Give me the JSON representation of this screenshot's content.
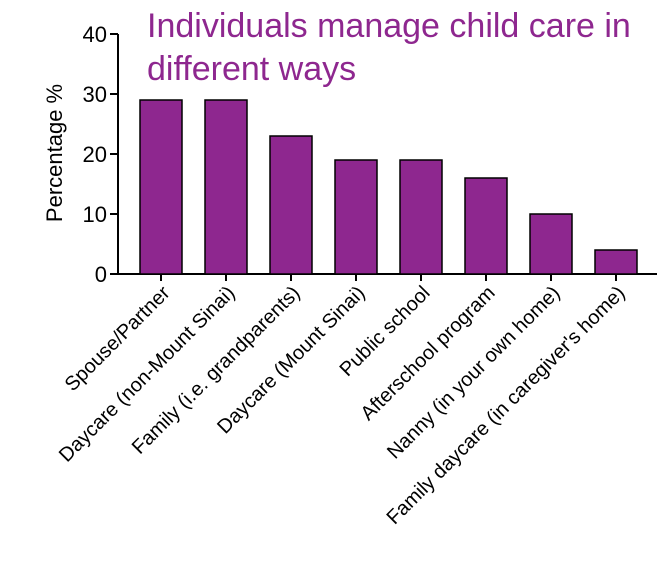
{
  "chart_data": {
    "type": "bar",
    "title_lines": [
      "Individuals manage child care in",
      "different ways"
    ],
    "ylabel": "Percentage %",
    "xlabel": "",
    "ylim": [
      0,
      40
    ],
    "yticks": [
      0,
      10,
      20,
      30,
      40
    ],
    "grid": false,
    "bar_color": "#8e278f",
    "title_color": "#8e278f",
    "categories": [
      "Spouse/Partner",
      "Daycare (non-Mount Sinai)",
      "Family (i.e. grandparents)",
      "Daycare (Mount Sinai)",
      "Public school",
      "Afterschool program",
      "Nanny (in your own home)",
      "Family daycare (in caregiver's home)"
    ],
    "values": [
      29,
      29,
      23,
      19,
      19,
      16,
      10,
      4
    ]
  }
}
